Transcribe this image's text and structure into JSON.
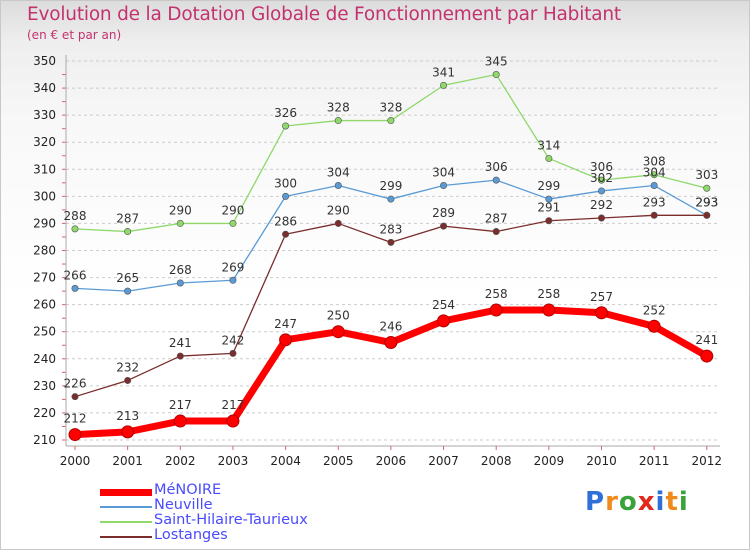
{
  "title": "Evolution de la Dotation Globale de Fonctionnement par Habitant",
  "subtitle": "(en € et par an)",
  "colors": {
    "title": "#c3326e",
    "legend_text": "#4a4aff",
    "grid": "#cccccc"
  },
  "logo": {
    "letters": [
      "P",
      "r",
      "o",
      "x",
      "i",
      "t",
      "i"
    ],
    "colors": [
      "#2e6fd8",
      "#f08a1c",
      "#3aa23a",
      "#e2271d",
      "#2e6fd8",
      "#f08a1c",
      "#3aa23a"
    ]
  },
  "chart_data": {
    "type": "line",
    "title": "Evolution de la Dotation Globale de Fonctionnement par Habitant",
    "subtitle": "(en € et par an)",
    "x": [
      "2000",
      "2001",
      "2002",
      "2003",
      "2004",
      "2005",
      "2006",
      "2007",
      "2008",
      "2009",
      "2010",
      "2011",
      "2012"
    ],
    "ylim": [
      210,
      350
    ],
    "yticks": [
      210,
      220,
      230,
      240,
      250,
      260,
      270,
      280,
      290,
      300,
      310,
      320,
      330,
      340,
      350
    ],
    "grid": "horizontal dashed",
    "legend_position": "bottom-left",
    "series": [
      {
        "name": "Saint-Hilaire-Taurieux",
        "color": "#8fd86a",
        "values": [
          288,
          287,
          290,
          290,
          326,
          328,
          328,
          341,
          345,
          314,
          306,
          308,
          303
        ],
        "width": 1.3,
        "marker_r": 3.2,
        "label_dy": -9
      },
      {
        "name": "Neuville",
        "color": "#5b9bd5",
        "values": [
          266,
          265,
          268,
          269,
          300,
          304,
          299,
          304,
          306,
          299,
          302,
          304,
          293
        ],
        "labels": [
          "266",
          "265",
          "268",
          "269",
          "300",
          "304",
          "299",
          "304",
          "306",
          "299",
          "302",
          "304",
          "293"
        ],
        "width": 1.3,
        "marker_r": 3.2,
        "label_dy": -9
      },
      {
        "name": "Lostanges",
        "color": "#7b2d2d",
        "values": [
          226,
          232,
          241,
          242,
          286,
          290,
          283,
          289,
          287,
          291,
          292,
          293,
          293
        ],
        "width": 1.3,
        "marker_r": 3.2,
        "label_dy": -9
      },
      {
        "name": "MéNOIRE",
        "color": "#ff0000",
        "values": [
          212,
          213,
          217,
          217,
          247,
          250,
          246,
          254,
          258,
          258,
          257,
          252,
          241
        ],
        "width": 7,
        "marker_r": 6,
        "label_dy": -12
      }
    ],
    "legend_order": [
      "MéNOIRE",
      "Neuville",
      "Saint-Hilaire-Taurieux",
      "Lostanges"
    ]
  }
}
